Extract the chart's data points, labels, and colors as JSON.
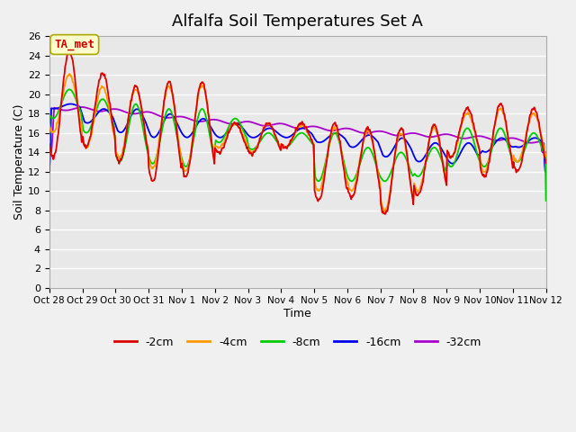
{
  "title": "Alfalfa Soil Temperatures Set A",
  "xlabel": "Time",
  "ylabel": "Soil Temperature (C)",
  "annotation": "TA_met",
  "annotation_color": "#cc0000",
  "annotation_bg": "#ffffcc",
  "annotation_border": "#aaa800",
  "ylim": [
    0,
    26
  ],
  "yticks": [
    0,
    2,
    4,
    6,
    8,
    10,
    12,
    14,
    16,
    18,
    20,
    22,
    24,
    26
  ],
  "xtick_labels": [
    "Oct 28",
    "Oct 29",
    "Oct 30",
    "Oct 31",
    "Nov 1",
    "Nov 2",
    "Nov 3",
    "Nov 4",
    "Nov 5",
    "Nov 6",
    "Nov 7",
    "Nov 8",
    "Nov 9",
    "Nov 10",
    "Nov 11",
    "Nov 12"
  ],
  "line_colors": {
    "-2cm": "#dd0000",
    "-4cm": "#ff9900",
    "-8cm": "#00cc00",
    "-16cm": "#0000ee",
    "-32cm": "#aa00cc"
  },
  "legend_labels": [
    "-2cm",
    "-4cm",
    "-8cm",
    "-16cm",
    "-32cm"
  ],
  "bg_color": "#f0f0f0",
  "plot_bg_color": "#e8e8e8",
  "grid_color": "#ffffff",
  "title_fontsize": 13,
  "n_days": 15,
  "pts_per_day": 48
}
